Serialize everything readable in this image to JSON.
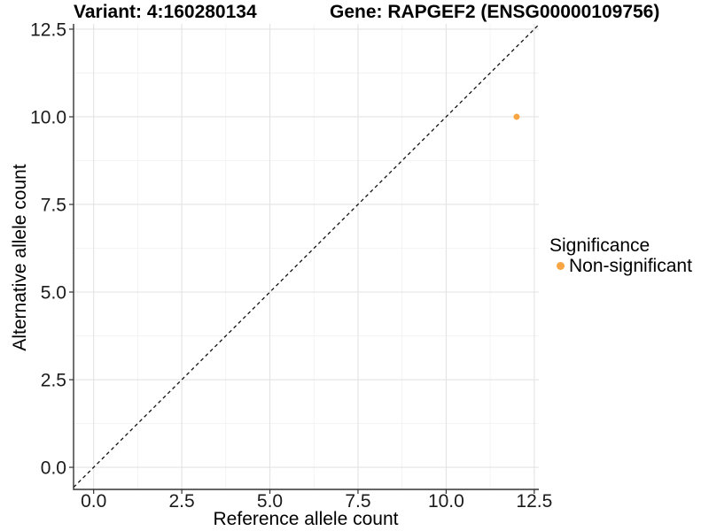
{
  "titles": {
    "left": "Variant: 4:160280134",
    "right": "Gene: RAPGEF2 (ENSG00000109756)"
  },
  "chart_data": {
    "type": "scatter",
    "xlabel": "Reference allele count",
    "ylabel": "Alternative allele count",
    "xlim": [
      -0.57,
      12.63
    ],
    "ylim": [
      -0.63,
      12.65
    ],
    "x_ticks": [
      0,
      2.5,
      5,
      7.5,
      10,
      12.5
    ],
    "x_tick_labels": [
      "0.0",
      "2.5",
      "5.0",
      "7.5",
      "10.0",
      "12.5"
    ],
    "y_ticks": [
      0,
      2.5,
      5,
      7.5,
      10,
      12.5
    ],
    "y_tick_labels": [
      "0.0",
      "2.5",
      "5.0",
      "7.5",
      "10.0",
      "12.5"
    ],
    "minor_ticks": [
      1.25,
      3.75,
      6.25,
      8.75,
      11.25
    ],
    "grid": true,
    "identity_line": {
      "slope": 1,
      "intercept": 0,
      "style": "dashed",
      "color": "#111111"
    },
    "points": [
      {
        "x": 12,
        "y": 10,
        "series": "Non-significant"
      }
    ],
    "legend": {
      "position": "right",
      "title": "Significance",
      "entries": [
        {
          "label": "Non-significant",
          "color": "#F8A543",
          "marker": "dot"
        }
      ]
    }
  },
  "colors": {
    "point": "#F8A543",
    "grid_major": "#E3E3E3",
    "grid_minor": "#F1F1F1",
    "axis": "#333333",
    "tick_label": "#1a1a1a",
    "background": "#FFFFFF"
  }
}
